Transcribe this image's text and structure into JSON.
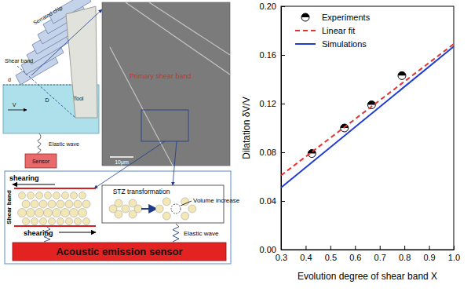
{
  "chart_data": {
    "type": "scatter",
    "xlabel": "Evolution degree of shear band X",
    "ylabel": "Dilatation δV/V",
    "xlim": [
      0.3,
      1.0
    ],
    "ylim": [
      0,
      0.2
    ],
    "xticks": [
      0.3,
      0.4,
      0.5,
      0.6,
      0.7,
      0.8,
      0.9,
      {
        "value": 1.0,
        "label": "1.0"
      }
    ],
    "yticks": [
      {
        "value": 0,
        "label": "0.00"
      },
      {
        "value": 0.04,
        "label": "0.04"
      },
      {
        "value": 0.08,
        "label": "0.08"
      },
      {
        "value": 0.12,
        "label": "0.12"
      },
      {
        "value": 0.16,
        "label": "0.16"
      },
      {
        "value": 0.2,
        "label": "0.20"
      }
    ],
    "legend": "top-left",
    "series": [
      {
        "name": "Experiments",
        "type": "scatter",
        "marker": "half-filled-circle",
        "color": "#000000",
        "x": [
          0.425,
          0.557,
          0.667,
          0.79
        ],
        "values": [
          0.079,
          0.1,
          0.119,
          0.143
        ]
      },
      {
        "name": "Linear fit",
        "type": "line",
        "line_style": "dashed",
        "color": "#e8312f",
        "x": [
          0.3,
          1.0
        ],
        "values": [
          0.061,
          0.169
        ]
      },
      {
        "name": "Simulations",
        "type": "line",
        "line_style": "solid",
        "color": "#1f3bd6",
        "x": [
          0.3,
          1.0
        ],
        "values": [
          0.051,
          0.167
        ]
      }
    ]
  },
  "diagram": {
    "schematic": {
      "serrated_chip": "Serrated chip",
      "shear_band": "Shear band",
      "tool": "Tool",
      "d": "d",
      "v": "V",
      "ds": "D",
      "elastic_wave": "Elastic wave",
      "sensor": "Sensor"
    },
    "micrograph": {
      "label": "Primary shear band",
      "scale_bar": "10μm"
    },
    "mechanism": {
      "shearing_top": "shearing",
      "shearing_bottom": "shearing",
      "shear_band": "Shear band",
      "stz": "STZ transformation",
      "volume": "Volume increase",
      "wave": "Elastic wave",
      "sensor": "Acoustic emission sensor"
    }
  }
}
